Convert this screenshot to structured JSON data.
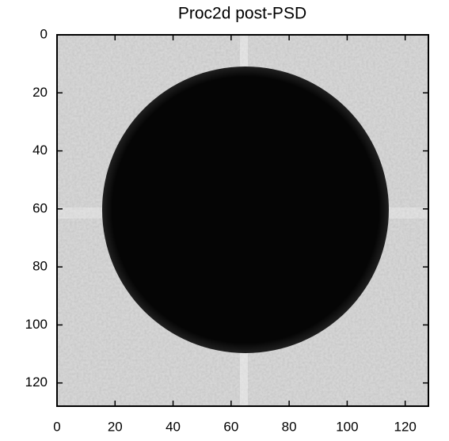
{
  "chart_data": {
    "type": "image",
    "title": "Proc2d post-PSD",
    "xlim": [
      0,
      128
    ],
    "ylim": [
      128,
      0
    ],
    "xticks": [
      0,
      20,
      40,
      60,
      80,
      100,
      120
    ],
    "yticks": [
      0,
      20,
      40,
      60,
      80,
      100,
      120
    ]
  }
}
